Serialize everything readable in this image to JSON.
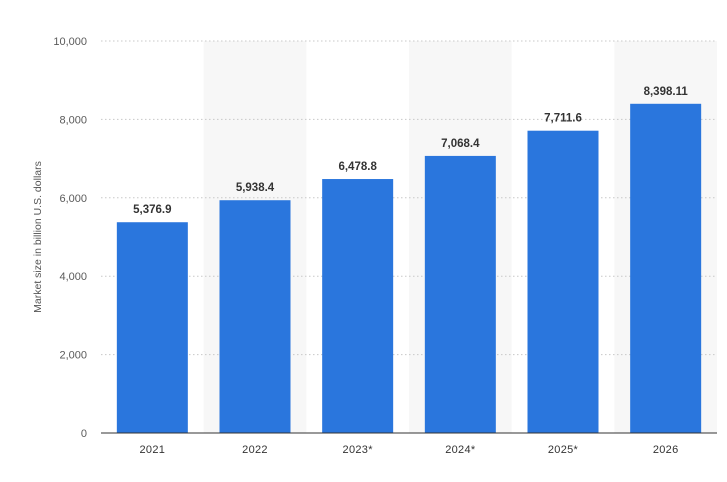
{
  "chart_data": {
    "type": "bar",
    "categories": [
      "2021",
      "2022",
      "2023*",
      "2024*",
      "2025*",
      "2026"
    ],
    "values": [
      5376.9,
      5938.4,
      6478.8,
      7068.4,
      7711.6,
      8398.11
    ],
    "value_labels": [
      "5,376.9",
      "5,938.4",
      "6,478.8",
      "7,068.4",
      "7,711.6",
      "8,398.11"
    ],
    "title": "",
    "xlabel": "",
    "ylabel": "Market size in billion U.S. dollars",
    "ylim": [
      0,
      10000
    ],
    "yticks": [
      0,
      2000,
      4000,
      6000,
      8000,
      10000
    ],
    "ytick_labels": [
      "0",
      "2,000",
      "4,000",
      "6,000",
      "8,000",
      "10,000"
    ],
    "grid": true,
    "grid_style": "dotted",
    "alternating_column_shading": true,
    "colors": {
      "bar": "#2a76dd",
      "column_shade": "#f7f7f7",
      "grid": "#c8c8c8",
      "axis": "#333333"
    }
  }
}
